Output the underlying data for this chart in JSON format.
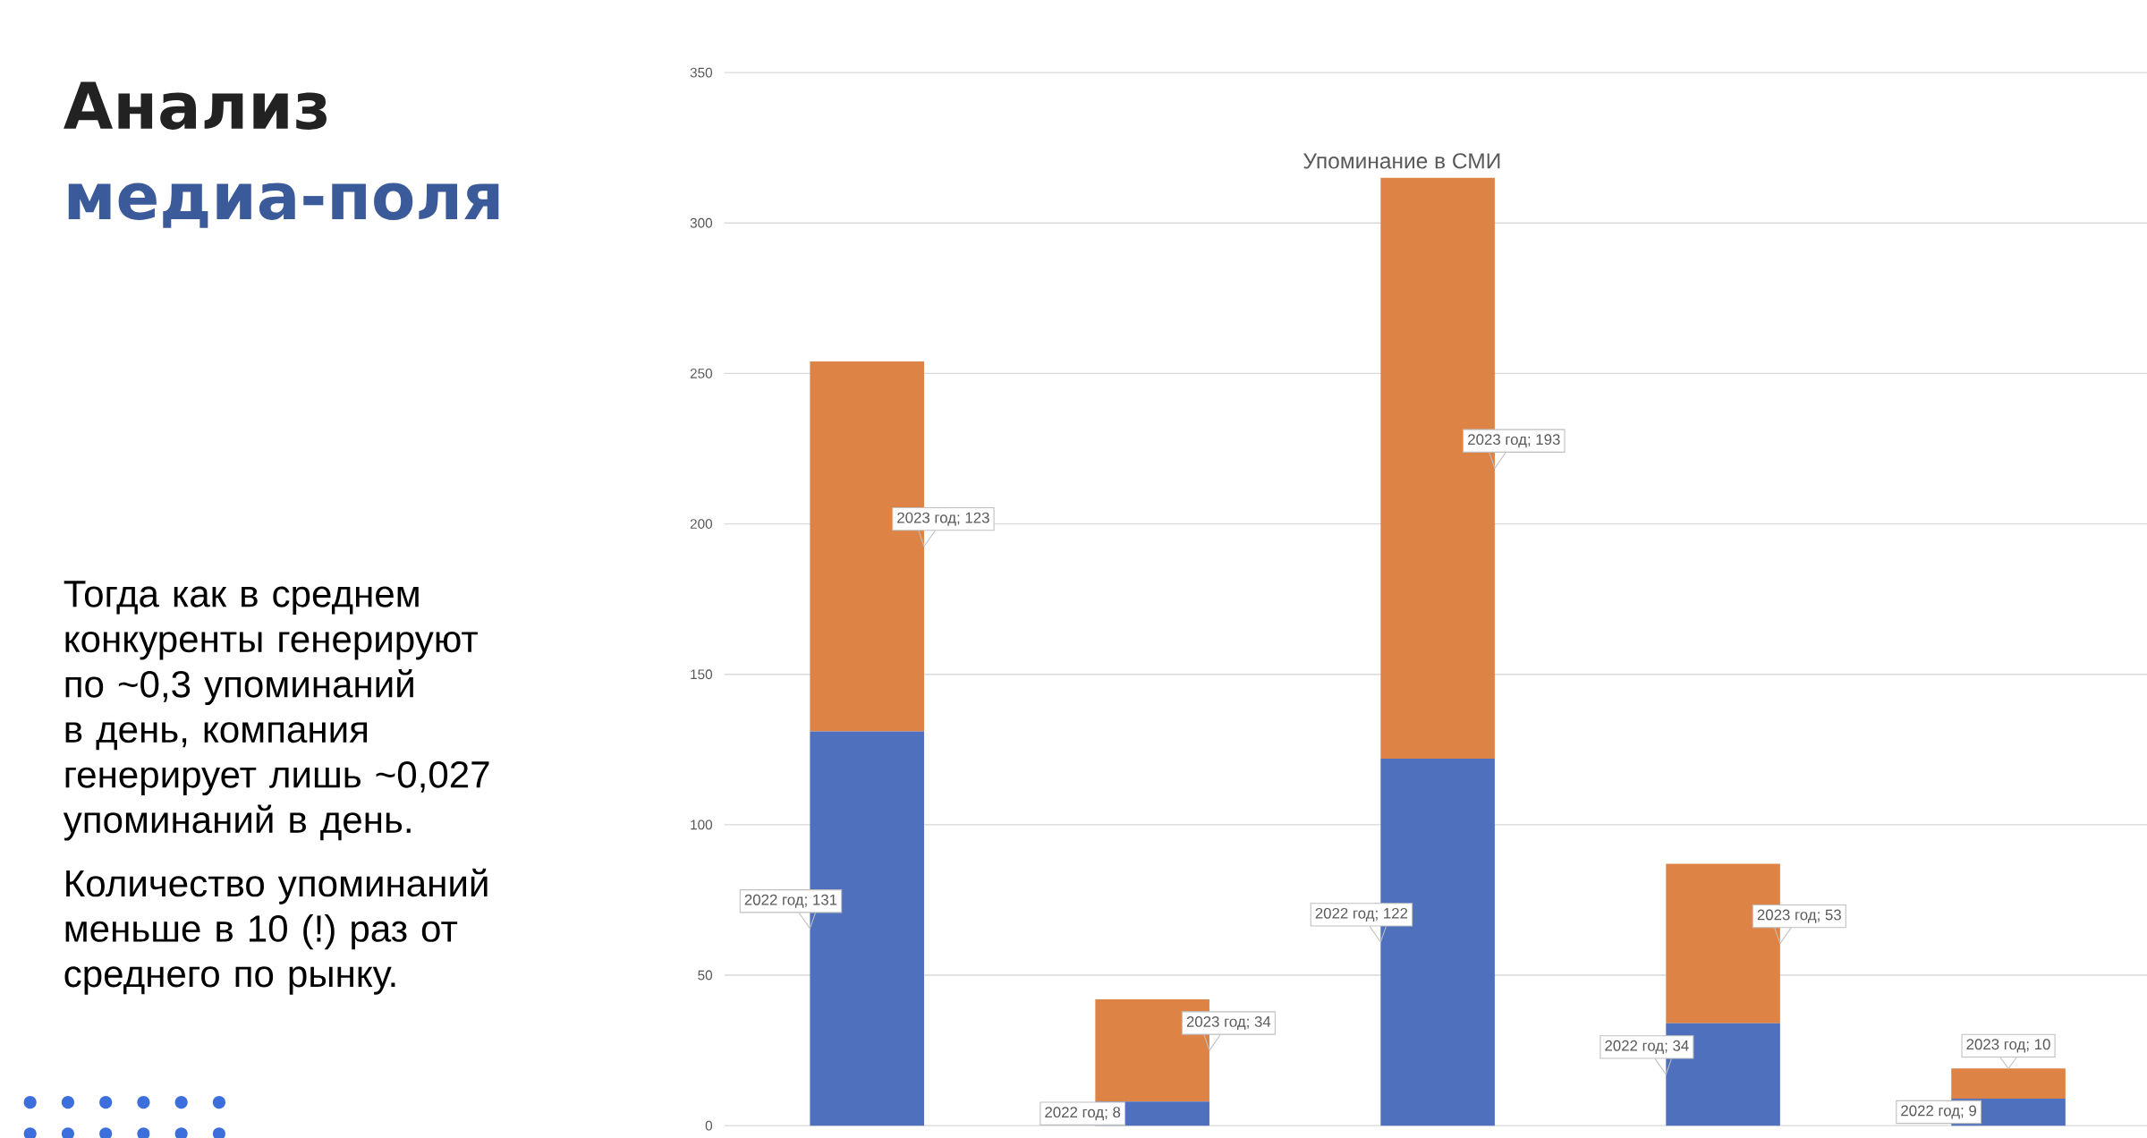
{
  "chart_data": {
    "type": "bar",
    "title": "Упоминание в СМИ",
    "categories": [
      null,
      null,
      null,
      null,
      null
    ],
    "stacked": true,
    "series": [
      {
        "color": "#4f71bd",
        "values": [
          131,
          8,
          122,
          34,
          9
        ],
        "value_labels": [
          "2022 год; 131",
          "2022 год; 8",
          "2022 год; 122",
          "2022 год; 34",
          "2022 год; 9"
        ]
      },
      {
        "color": "#dd8346",
        "values": [
          123,
          34,
          193,
          53,
          10
        ],
        "value_labels": [
          "2023 год; 123",
          "2023 год; 34",
          "2023 год; 193",
          "2023 год; 53",
          "2023 год; 10"
        ]
      }
    ],
    "ylim": [
      0,
      350
    ],
    "yticks": [
      0,
      50,
      100,
      150,
      200,
      250,
      300,
      350
    ],
    "grid": "y",
    "annotations": [
      "Анализ",
      "медиа-поля",
      "Тогда как в среднем конкуренты генерируют по ~0,3 упоминаний в день, компания генерирует лишь ~0,027 упоминаний в день.",
      "Количество упоминаний меньше в 10 (!) раз от среднего по рынку."
    ]
  }
}
